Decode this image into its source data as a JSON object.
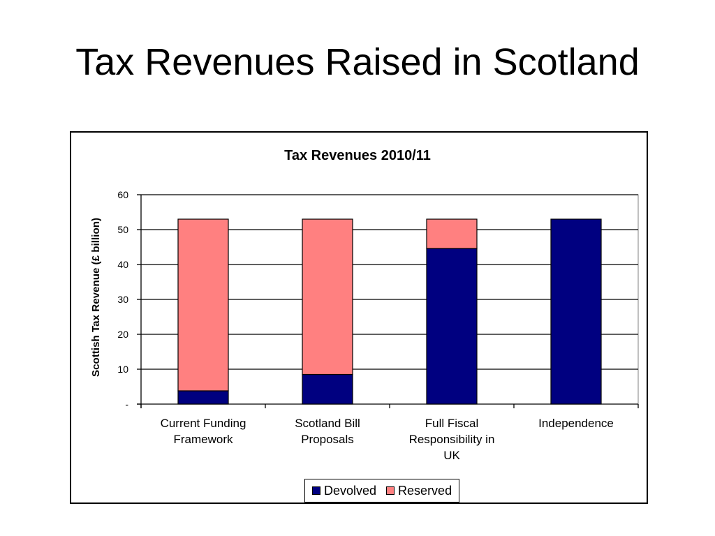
{
  "slide": {
    "title": "Tax Revenues Raised in Scotland"
  },
  "colors": {
    "devolved": "#000080",
    "reserved": "#FF8080",
    "plot_background": "#FFFFFF",
    "gridline": "#000000"
  },
  "chart_data": {
    "type": "bar",
    "stacked": true,
    "title": "Tax Revenues 2010/11",
    "xlabel": "",
    "ylabel": "Scottish Tax Revenue (£ billion)",
    "ylim": [
      0,
      60
    ],
    "yticks": [
      0,
      10,
      20,
      30,
      40,
      50,
      60
    ],
    "ytick_labels": [
      "-",
      "10",
      "20",
      "30",
      "40",
      "50",
      "60"
    ],
    "grid": true,
    "legend_position": "bottom",
    "categories": [
      [
        "Current Funding",
        "Framework"
      ],
      [
        "Scotland Bill",
        "Proposals"
      ],
      [
        "Full Fiscal",
        "Responsibility in",
        "UK"
      ],
      [
        "Independence"
      ]
    ],
    "series": [
      {
        "name": "Devolved",
        "color": "#000080",
        "values": [
          3.8,
          8.5,
          44.6,
          53.0
        ]
      },
      {
        "name": "Reserved",
        "color": "#FF8080",
        "values": [
          49.2,
          44.5,
          8.4,
          0.0
        ]
      }
    ]
  }
}
